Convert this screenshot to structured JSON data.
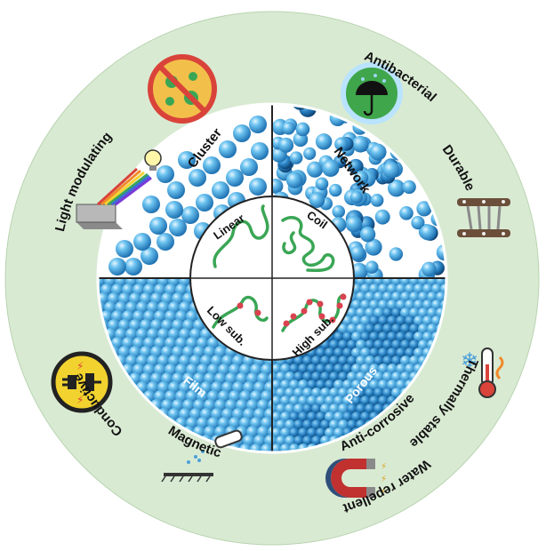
{
  "colors": {
    "outer_ring": "#d9ead3",
    "sphere": "#3ea3e0",
    "sphere_light": "#9fd6f5",
    "chain": "#3aa655",
    "substituent": "#d9434f"
  },
  "outer_properties": [
    {
      "label": "Antibacterial",
      "icon": "bacteria-prohibited-icon"
    },
    {
      "label": "Water repellent",
      "icon": "umbrella-icon"
    },
    {
      "label": "Durable",
      "icon": "fabric-clip-icon"
    },
    {
      "label": "Thermally stable",
      "icon": "thermometer-icon"
    },
    {
      "label": "Magnetic",
      "icon": "magnet-icon"
    },
    {
      "label": "Anti-corrosive",
      "icon": "spray-surface-icon"
    },
    {
      "label": "Conductive",
      "icon": "plug-icon"
    },
    {
      "label": "Light modulating",
      "icon": "prism-bulb-icon"
    }
  ],
  "quadrants": {
    "top_left": "Cluster",
    "top_right": "Network",
    "bottom_left": "Film",
    "bottom_right": "Porous"
  },
  "core": {
    "top_left": "Linear",
    "top_right": "Coil",
    "bottom_left": "Low sub.",
    "bottom_right": "High sub."
  }
}
